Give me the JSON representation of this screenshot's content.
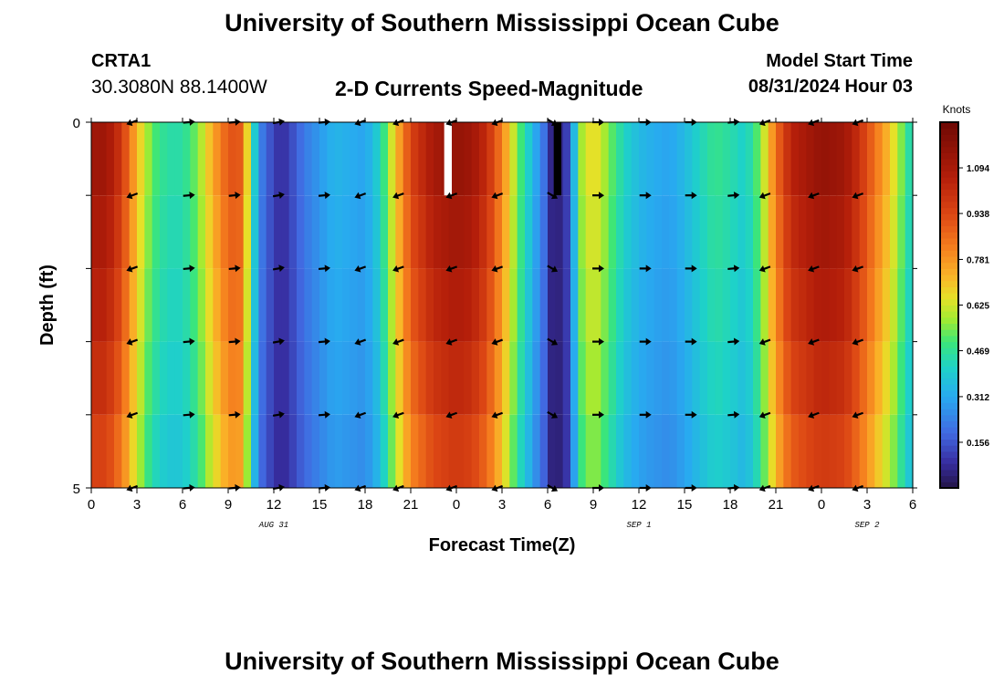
{
  "header": {
    "title": "University of Southern Mississippi Ocean Cube",
    "station": "CRTA1",
    "coords": "30.3080N  88.1400W",
    "chart_title": "2-D Currents Speed-Magnitude",
    "start_label": "Model Start Time",
    "start_value": "08/31/2024 Hour 03"
  },
  "footer": {
    "title": "University of Southern Mississippi Ocean Cube"
  },
  "colors": {
    "arrow": "#000000",
    "background": "#ffffff"
  },
  "chart_data": {
    "type": "heatmap",
    "title": "2-D Currents Speed-Magnitude",
    "xlabel": "Forecast Time(Z)",
    "ylabel": "Depth (ft)",
    "x_hours_range": [
      0,
      54
    ],
    "ylim": [
      0,
      5
    ],
    "y_ticks": [
      "0",
      "5"
    ],
    "x_tick_labels": [
      "0",
      "3",
      "6",
      "9",
      "12",
      "15",
      "18",
      "21",
      "0",
      "3",
      "6",
      "9",
      "12",
      "15",
      "18",
      "21",
      "0",
      "3",
      "6"
    ],
    "date_labels": [
      {
        "text": "AUG 31",
        "hour": 12
      },
      {
        "text": "SEP 1",
        "hour": 36
      },
      {
        "text": "SEP 2",
        "hour": 51
      }
    ],
    "colorbar": {
      "label": "Knots",
      "range": [
        0,
        1.25
      ],
      "ticks": [
        0.156,
        0.312,
        0.469,
        0.625,
        0.781,
        0.938,
        1.094
      ],
      "tick_labels": [
        "0.156",
        "0.312",
        "0.469",
        "0.625",
        "0.781",
        "0.938",
        "1.094"
      ]
    },
    "time_step_hours": 0.5,
    "depth_levels": 5,
    "speed_keypoints_knots": [
      [
        0,
        1.12
      ],
      [
        1,
        1.12
      ],
      [
        2,
        0.98
      ],
      [
        3,
        0.72
      ],
      [
        4,
        0.52
      ],
      [
        5,
        0.45
      ],
      [
        6,
        0.45
      ],
      [
        7,
        0.55
      ],
      [
        8,
        0.75
      ],
      [
        9,
        0.9
      ],
      [
        9.7,
        0.92
      ],
      [
        10.3,
        0.65
      ],
      [
        11,
        0.25
      ],
      [
        12,
        0.12
      ],
      [
        12.5,
        0.08
      ],
      [
        13,
        0.12
      ],
      [
        14,
        0.22
      ],
      [
        15,
        0.28
      ],
      [
        16,
        0.34
      ],
      [
        17,
        0.32
      ],
      [
        18,
        0.3
      ],
      [
        19,
        0.42
      ],
      [
        20,
        0.7
      ],
      [
        21,
        0.95
      ],
      [
        22.5,
        1.1
      ],
      [
        24,
        1.15
      ],
      [
        25,
        1.12
      ],
      [
        26,
        1.02
      ],
      [
        27,
        0.82
      ],
      [
        28,
        0.55
      ],
      [
        29,
        0.35
      ],
      [
        29.8,
        0.2
      ],
      [
        30.3,
        0.05
      ],
      [
        30.8,
        0.06
      ],
      [
        31.5,
        0.15
      ],
      [
        32,
        0.55
      ],
      [
        33,
        0.68
      ],
      [
        34,
        0.55
      ],
      [
        35,
        0.42
      ],
      [
        36,
        0.35
      ],
      [
        37,
        0.32
      ],
      [
        38,
        0.3
      ],
      [
        39,
        0.35
      ],
      [
        40,
        0.42
      ],
      [
        41,
        0.48
      ],
      [
        42,
        0.45
      ],
      [
        43,
        0.4
      ],
      [
        44,
        0.55
      ],
      [
        45,
        0.85
      ],
      [
        46,
        1.05
      ],
      [
        48,
        1.15
      ],
      [
        49.5,
        1.12
      ],
      [
        50.5,
        1.0
      ],
      [
        51.5,
        0.85
      ],
      [
        52.5,
        0.7
      ],
      [
        53.5,
        0.5
      ],
      [
        54,
        0.4
      ]
    ],
    "depth_factors": [
      1.0,
      0.97,
      0.94,
      0.9,
      0.85
    ],
    "arrows": {
      "hours": [
        2.7,
        6.4,
        9.4,
        12.3,
        15.3,
        17.7,
        20.2,
        23.7,
        26.7,
        30.3,
        33.3,
        36.4,
        39.4,
        42.2,
        44.3,
        47.5,
        50.4
      ],
      "depths": [
        0.0,
        1.0,
        2.0,
        3.0,
        4.0,
        5.0
      ],
      "angles_deg": [
        200,
        5,
        5,
        10,
        5,
        200,
        200,
        200,
        200,
        330,
        0,
        0,
        0,
        5,
        200,
        200,
        200
      ]
    },
    "missing_cells": [
      {
        "hour": 23.2,
        "depth_level": 0,
        "value": null,
        "note": "white"
      },
      {
        "hour": 30.4,
        "depth_level": 0,
        "value": "min",
        "note": "black"
      }
    ]
  }
}
